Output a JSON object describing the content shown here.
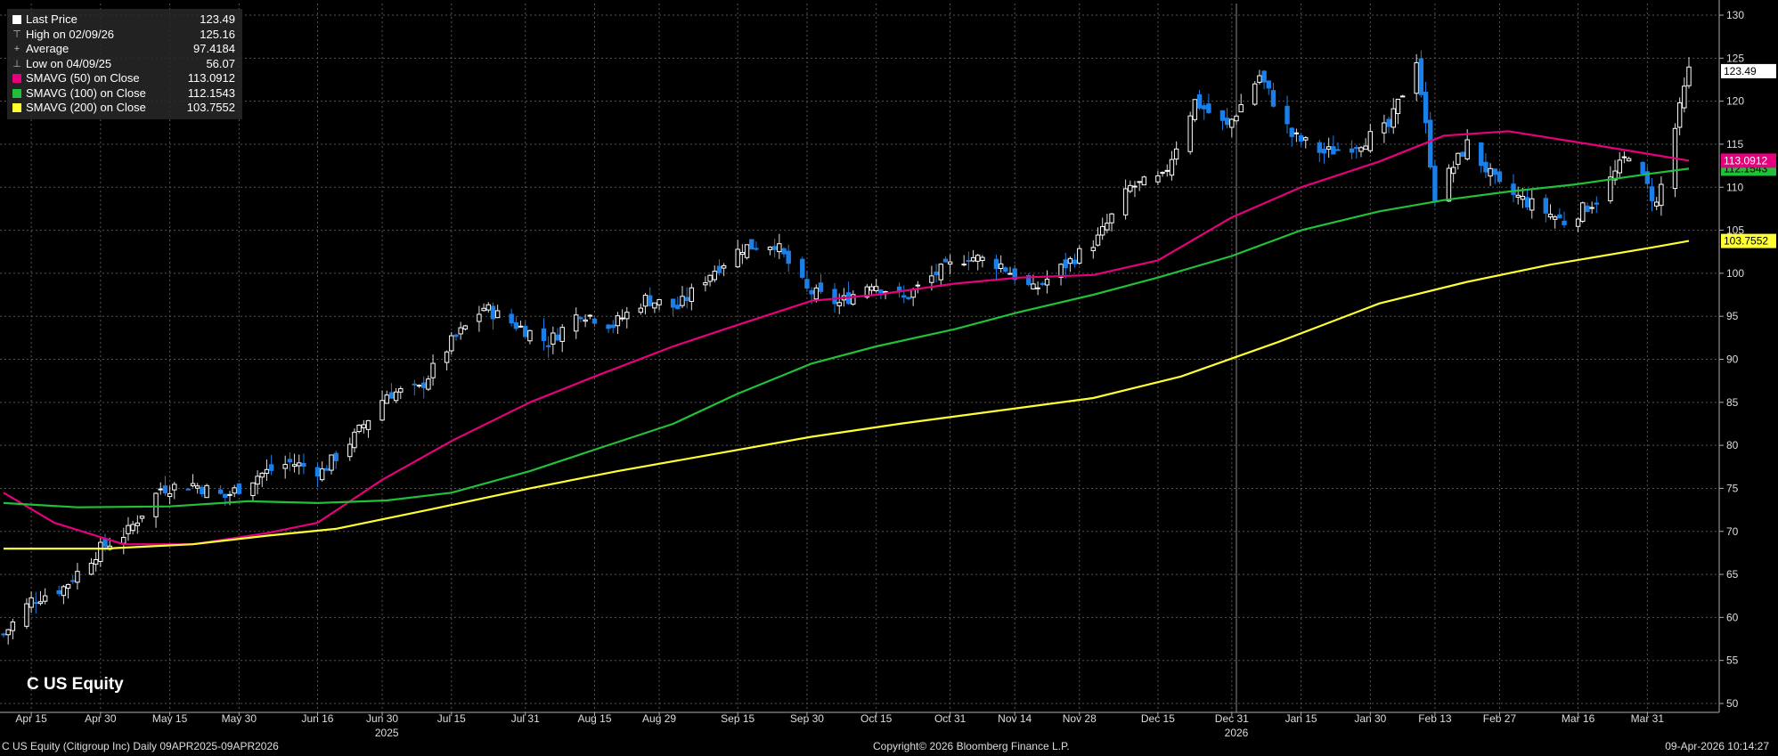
{
  "ticker_label": "C US Equity",
  "legend": [
    {
      "label": "Last Price",
      "value": "123.49",
      "color": "#ffffff",
      "icon": "square-icon"
    },
    {
      "label": "High on 02/09/26",
      "value": "125.16",
      "color": "#bbbbbb",
      "icon": "high-marker-icon",
      "glyph": "⊤"
    },
    {
      "label": "Average",
      "value": "97.4184",
      "color": "#bbbbbb",
      "icon": "average-marker-icon",
      "glyph": "+"
    },
    {
      "label": "Low on 04/09/25",
      "value": "56.07",
      "color": "#bbbbbb",
      "icon": "low-marker-icon",
      "glyph": "⊥"
    },
    {
      "label": "SMAVG (50)  on Close",
      "value": "113.0912",
      "color": "#e6007e",
      "icon": "square-icon"
    },
    {
      "label": "SMAVG (100)  on Close",
      "value": "112.1543",
      "color": "#22c03a",
      "icon": "square-icon"
    },
    {
      "label": "SMAVG (200)  on Close",
      "value": "103.7552",
      "color": "#ffff33",
      "icon": "square-icon"
    }
  ],
  "footer": {
    "left": "C US Equity (Citigroup Inc) Daily 09APR2025-09APR2026",
    "center": "Copyright© 2026 Bloomberg Finance L.P.",
    "right": "09-Apr-2026 10:14:27"
  },
  "colors": {
    "up": "#ffffff",
    "down": "#1a7fe8",
    "sma50": "#e6007e",
    "sma100": "#22c03a",
    "sma200": "#ffff33",
    "grid": "#555555"
  },
  "chart_data": {
    "type": "line",
    "ylim": [
      50,
      130
    ],
    "y_ticks": [
      50,
      55,
      60,
      65,
      70,
      75,
      80,
      85,
      90,
      95,
      100,
      105,
      110,
      115,
      120,
      125,
      130
    ],
    "x_range": [
      "2025-04-09",
      "2026-04-09"
    ],
    "x_ticks": [
      {
        "date": "2025-04-15",
        "label": "Apr 15"
      },
      {
        "date": "2025-04-30",
        "label": "Apr 30"
      },
      {
        "date": "2025-05-15",
        "label": "May 15"
      },
      {
        "date": "2025-05-30",
        "label": "May 30"
      },
      {
        "date": "2025-06-16",
        "label": "Jun 16"
      },
      {
        "date": "2025-06-30",
        "label": "Jun 30"
      },
      {
        "date": "2025-07-15",
        "label": "Jul 15"
      },
      {
        "date": "2025-07-31",
        "label": "Jul 31"
      },
      {
        "date": "2025-08-15",
        "label": "Aug 15"
      },
      {
        "date": "2025-08-29",
        "label": "Aug 29"
      },
      {
        "date": "2025-09-15",
        "label": "Sep 15"
      },
      {
        "date": "2025-09-30",
        "label": "Sep 30"
      },
      {
        "date": "2025-10-15",
        "label": "Oct 15"
      },
      {
        "date": "2025-10-31",
        "label": "Oct 31"
      },
      {
        "date": "2025-11-14",
        "label": "Nov 14"
      },
      {
        "date": "2025-11-28",
        "label": "Nov 28"
      },
      {
        "date": "2025-12-15",
        "label": "Dec 15"
      },
      {
        "date": "2025-12-31",
        "label": "Dec 31"
      },
      {
        "date": "2026-01-15",
        "label": "Jan 15"
      },
      {
        "date": "2026-01-30",
        "label": "Jan 30"
      },
      {
        "date": "2026-02-13",
        "label": "Feb 13"
      },
      {
        "date": "2026-02-27",
        "label": "Feb 27"
      },
      {
        "date": "2026-03-16",
        "label": "Mar 16"
      },
      {
        "date": "2026-03-31",
        "label": "Mar 31"
      }
    ],
    "year_labels": [
      {
        "date": "2025-07-01",
        "label": "2025"
      },
      {
        "date": "2026-01-01",
        "label": "2026"
      }
    ],
    "year_separators": [
      "2026-01-01"
    ],
    "last_price": 123.49,
    "high": {
      "date": "2026-02-09",
      "value": 125.16
    },
    "low": {
      "date": "2025-04-09",
      "value": 56.07
    },
    "average": 97.4184,
    "price": {
      "name": "Last Price",
      "dates": [
        "2025-04-09",
        "2025-04-15",
        "2025-04-22",
        "2025-04-30",
        "2025-05-06",
        "2025-05-13",
        "2025-05-20",
        "2025-05-27",
        "2025-06-03",
        "2025-06-10",
        "2025-06-17",
        "2025-06-24",
        "2025-07-01",
        "2025-07-08",
        "2025-07-15",
        "2025-07-22",
        "2025-07-29",
        "2025-08-05",
        "2025-08-12",
        "2025-08-19",
        "2025-08-26",
        "2025-09-02",
        "2025-09-09",
        "2025-09-16",
        "2025-09-23",
        "2025-09-30",
        "2025-10-07",
        "2025-10-14",
        "2025-10-21",
        "2025-10-28",
        "2025-11-04",
        "2025-11-11",
        "2025-11-18",
        "2025-11-25",
        "2025-12-02",
        "2025-12-09",
        "2025-12-16",
        "2025-12-23",
        "2025-12-30",
        "2026-01-06",
        "2026-01-13",
        "2026-01-20",
        "2026-01-27",
        "2026-02-03",
        "2026-02-09",
        "2026-02-13",
        "2026-02-20",
        "2026-02-27",
        "2026-03-06",
        "2026-03-13",
        "2026-03-20",
        "2026-03-27",
        "2026-04-02",
        "2026-04-09"
      ],
      "values": [
        58,
        62,
        63.5,
        68,
        70,
        75,
        75.5,
        74,
        76.5,
        78,
        77,
        81,
        86,
        86.5,
        92,
        96,
        94,
        92,
        95.5,
        94,
        97,
        96,
        100,
        103,
        103.5,
        98,
        96.5,
        99,
        97,
        100,
        102,
        101,
        98,
        101,
        104,
        110,
        111,
        120,
        117,
        123,
        116,
        114,
        115,
        117,
        125,
        109,
        115,
        110,
        108,
        106,
        108.5,
        114,
        108,
        123.49
      ]
    },
    "series": [
      {
        "name": "SMAVG (50)  on Close",
        "last": 113.0912,
        "dates": [
          "2025-04-09",
          "2025-04-20",
          "2025-05-05",
          "2025-05-20",
          "2025-06-05",
          "2025-06-16",
          "2025-06-30",
          "2025-07-15",
          "2025-08-01",
          "2025-08-15",
          "2025-09-01",
          "2025-09-15",
          "2025-10-01",
          "2025-10-15",
          "2025-11-01",
          "2025-11-15",
          "2025-12-01",
          "2025-12-15",
          "2025-12-31",
          "2026-01-15",
          "2026-02-01",
          "2026-02-15",
          "2026-03-01",
          "2026-03-15",
          "2026-04-01",
          "2026-04-09"
        ],
        "values": [
          74.5,
          71,
          68.5,
          68.5,
          69.8,
          71,
          76,
          80.5,
          85,
          88,
          91.5,
          94,
          96.8,
          97.5,
          98.8,
          99.5,
          99.8,
          101.5,
          106.5,
          110,
          113,
          116,
          116.5,
          115.3,
          113.8,
          113.0912
        ]
      },
      {
        "name": "SMAVG (100)  on Close",
        "last": 112.1543,
        "dates": [
          "2025-04-09",
          "2025-04-25",
          "2025-05-15",
          "2025-06-01",
          "2025-06-16",
          "2025-07-01",
          "2025-07-15",
          "2025-08-01",
          "2025-08-15",
          "2025-09-01",
          "2025-09-15",
          "2025-10-01",
          "2025-10-15",
          "2025-11-01",
          "2025-11-15",
          "2025-12-01",
          "2025-12-15",
          "2025-12-31",
          "2026-01-15",
          "2026-02-01",
          "2026-02-15",
          "2026-03-01",
          "2026-03-15",
          "2026-04-01",
          "2026-04-09"
        ],
        "values": [
          73.3,
          72.8,
          72.9,
          73.5,
          73.3,
          73.6,
          74.5,
          77,
          79.5,
          82.5,
          86,
          89.5,
          91.5,
          93.5,
          95.5,
          97.5,
          99.5,
          102,
          105,
          107.2,
          108.5,
          109.5,
          110.3,
          111.6,
          112.1543
        ]
      },
      {
        "name": "SMAVG (200)  on Close",
        "last": 103.7552,
        "dates": [
          "2025-04-09",
          "2025-05-01",
          "2025-05-20",
          "2025-06-05",
          "2025-06-20",
          "2025-07-10",
          "2025-08-01",
          "2025-08-20",
          "2025-09-10",
          "2025-10-01",
          "2025-10-20",
          "2025-11-10",
          "2025-12-01",
          "2025-12-20",
          "2026-01-10",
          "2026-02-01",
          "2026-02-20",
          "2026-03-10",
          "2026-04-01",
          "2026-04-09"
        ],
        "values": [
          68,
          68,
          68.5,
          69.5,
          70.3,
          72.5,
          75,
          77,
          79,
          81,
          82.5,
          84,
          85.5,
          88,
          92,
          96.5,
          99,
          101,
          103,
          103.7552
        ]
      }
    ]
  }
}
